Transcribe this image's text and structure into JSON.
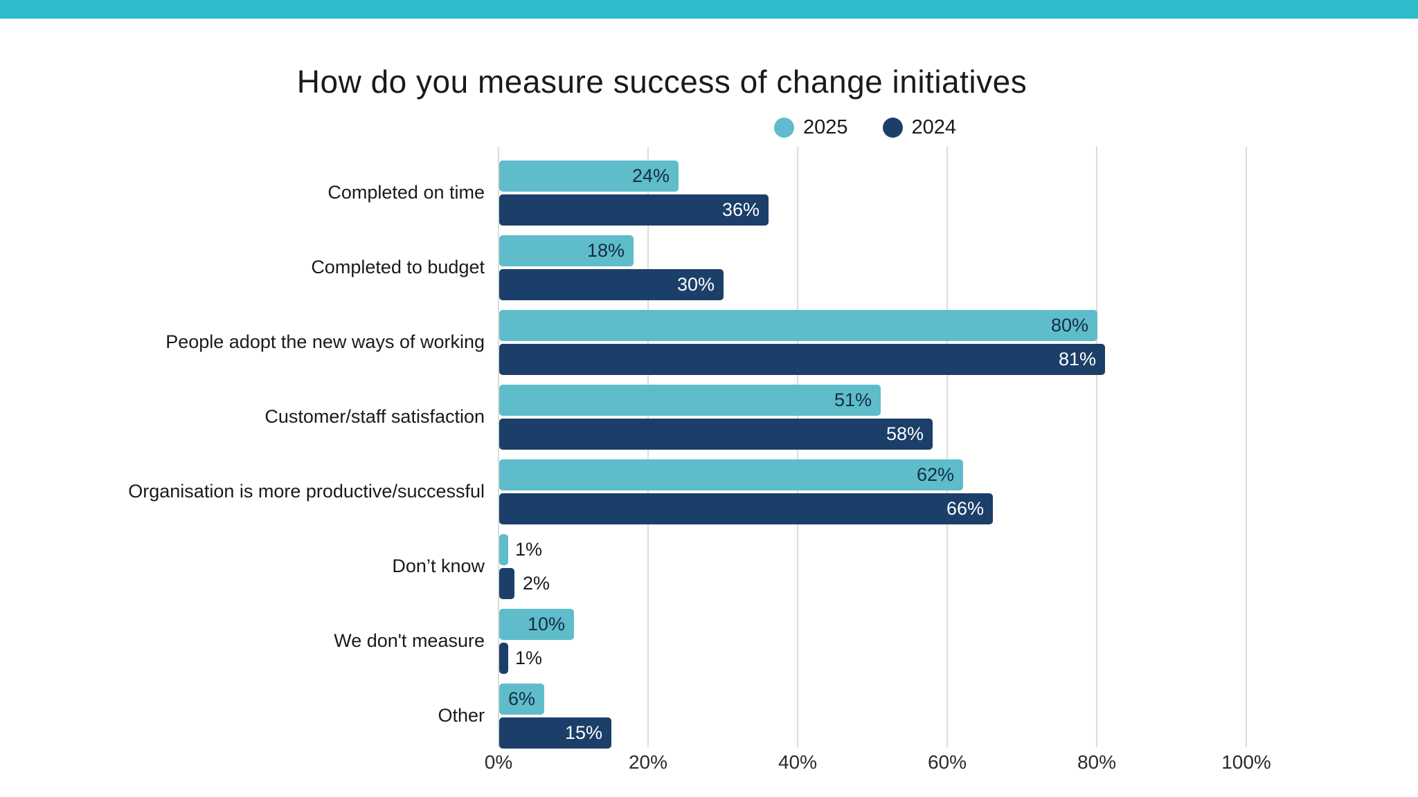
{
  "page": {
    "background_color": "#ffffff",
    "top_bar_color": "#2ebdcb"
  },
  "title": "How do you measure success of change initiatives",
  "legend": {
    "items": [
      {
        "label": "2025",
        "color": "#5fbccb"
      },
      {
        "label": "2024",
        "color": "#1b3f68"
      }
    ]
  },
  "chart_data": {
    "type": "bar",
    "orientation": "horizontal",
    "title": "How do you measure success of change initiatives",
    "categories": [
      "Completed on time",
      "Completed to budget",
      "People adopt the new ways of working",
      "Customer/staff satisfaction",
      "Organisation is more productive/successful",
      "Don’t know",
      "We don't measure",
      "Other"
    ],
    "series": [
      {
        "name": "2025",
        "color": "#5fbccb",
        "label_color_inside": "#132c46",
        "values": [
          24,
          18,
          80,
          51,
          62,
          1,
          10,
          6
        ]
      },
      {
        "name": "2024",
        "color": "#1b3f68",
        "label_color_inside": "#ffffff",
        "values": [
          36,
          30,
          81,
          58,
          66,
          2,
          1,
          15
        ]
      }
    ],
    "value_suffix": "%",
    "xlim": [
      0,
      100
    ],
    "x_ticks": [
      {
        "value": 0,
        "label": "0%"
      },
      {
        "value": 20,
        "label": "20%"
      },
      {
        "value": 40,
        "label": "40%"
      },
      {
        "value": 60,
        "label": "60%"
      },
      {
        "value": 80,
        "label": "80%"
      },
      {
        "value": 100,
        "label": "100%"
      }
    ],
    "grid": "vertical",
    "gridline_color": "#dcdcdc",
    "legend_position": "top",
    "outside_label_color": "#1a1a1a"
  }
}
